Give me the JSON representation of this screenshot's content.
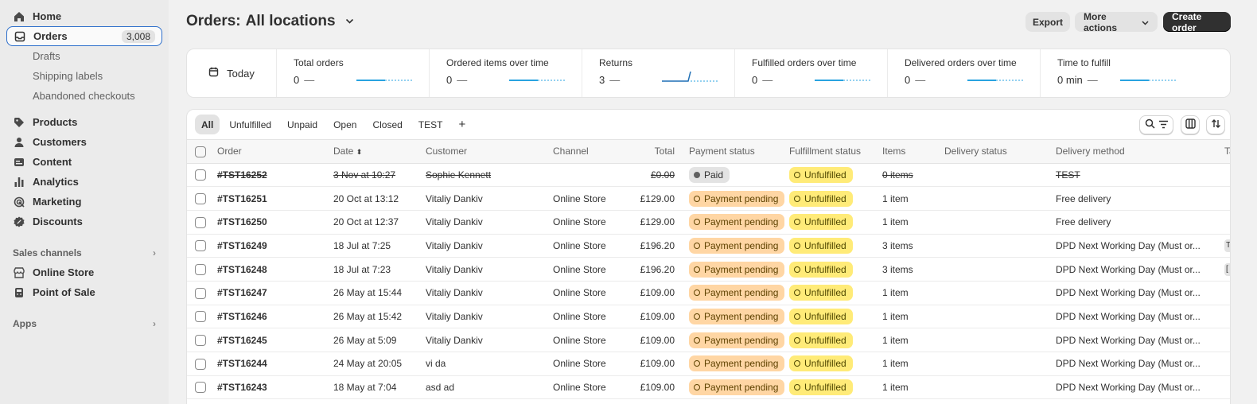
{
  "sidebar": {
    "home": "Home",
    "orders": "Orders",
    "orders_count": "3,008",
    "drafts": "Drafts",
    "shipping_labels": "Shipping labels",
    "abandoned_checkouts": "Abandoned checkouts",
    "products": "Products",
    "customers": "Customers",
    "content": "Content",
    "analytics": "Analytics",
    "marketing": "Marketing",
    "discounts": "Discounts",
    "sales_channels": "Sales channels",
    "online_store": "Online Store",
    "point_of_sale": "Point of Sale",
    "apps": "Apps"
  },
  "header": {
    "title_prefix": "Orders:",
    "title_location": "All locations",
    "export": "Export",
    "more_actions": "More actions",
    "create_order": "Create order"
  },
  "metrics": {
    "today": "Today",
    "items": [
      {
        "label": "Total orders",
        "value": "0",
        "dash": "—"
      },
      {
        "label": "Ordered items over time",
        "value": "0",
        "dash": "—"
      },
      {
        "label": "Returns",
        "value": "3",
        "dash": "—"
      },
      {
        "label": "Fulfilled orders over time",
        "value": "0",
        "dash": "—"
      },
      {
        "label": "Delivered orders over time",
        "value": "0",
        "dash": "—"
      },
      {
        "label": "Time to fulfill",
        "value": "0 min",
        "dash": "—"
      }
    ]
  },
  "tabs": [
    "All",
    "Unfulfilled",
    "Unpaid",
    "Open",
    "Closed",
    "TEST",
    "+"
  ],
  "table": {
    "headers": {
      "order": "Order",
      "date": "Date",
      "customer": "Customer",
      "channel": "Channel",
      "total": "Total",
      "payment": "Payment status",
      "fulfillment": "Fulfillment status",
      "items": "Items",
      "delivery_status": "Delivery status",
      "delivery_method": "Delivery method",
      "tags": "Ta"
    },
    "rows": [
      {
        "order": "#TST16252",
        "date": "3 Nov at 10:27",
        "customer": "Sophie Kennett",
        "channel": "",
        "total": "£0.00",
        "payment": "Paid",
        "fulfillment": "Unfulfilled",
        "items": "0 items",
        "delivery_status": "",
        "delivery_method": "TEST",
        "tag": ""
      },
      {
        "order": "#TST16251",
        "date": "20 Oct at 13:12",
        "customer": "Vitaliy Dankiv",
        "channel": "Online Store",
        "total": "£129.00",
        "payment": "Payment pending",
        "fulfillment": "Unfulfilled",
        "items": "1 item",
        "delivery_status": "",
        "delivery_method": "Free delivery",
        "tag": ""
      },
      {
        "order": "#TST16250",
        "date": "20 Oct at 12:37",
        "customer": "Vitaliy Dankiv",
        "channel": "Online Store",
        "total": "£129.00",
        "payment": "Payment pending",
        "fulfillment": "Unfulfilled",
        "items": "1 item",
        "delivery_status": "",
        "delivery_method": "Free delivery",
        "tag": ""
      },
      {
        "order": "#TST16249",
        "date": "18 Jul at 7:25",
        "customer": "Vitaliy Dankiv",
        "channel": "Online Store",
        "total": "£196.20",
        "payment": "Payment pending",
        "fulfillment": "Unfulfilled",
        "items": "3 items",
        "delivery_status": "",
        "delivery_method": "DPD Next Working Day (Must or...",
        "tag": "T"
      },
      {
        "order": "#TST16248",
        "date": "18 Jul at 7:23",
        "customer": "Vitaliy Dankiv",
        "channel": "Online Store",
        "total": "£196.20",
        "payment": "Payment pending",
        "fulfillment": "Unfulfilled",
        "items": "3 items",
        "delivery_status": "",
        "delivery_method": "DPD Next Working Day (Must or...",
        "tag": "["
      },
      {
        "order": "#TST16247",
        "date": "26 May at 15:44",
        "customer": "Vitaliy Dankiv",
        "channel": "Online Store",
        "total": "£109.00",
        "payment": "Payment pending",
        "fulfillment": "Unfulfilled",
        "items": "1 item",
        "delivery_status": "",
        "delivery_method": "DPD Next Working Day (Must or...",
        "tag": ""
      },
      {
        "order": "#TST16246",
        "date": "26 May at 15:42",
        "customer": "Vitaliy Dankiv",
        "channel": "Online Store",
        "total": "£109.00",
        "payment": "Payment pending",
        "fulfillment": "Unfulfilled",
        "items": "1 item",
        "delivery_status": "",
        "delivery_method": "DPD Next Working Day (Must or...",
        "tag": ""
      },
      {
        "order": "#TST16245",
        "date": "26 May at 5:09",
        "customer": "Vitaliy Dankiv",
        "channel": "Online Store",
        "total": "£109.00",
        "payment": "Payment pending",
        "fulfillment": "Unfulfilled",
        "items": "1 item",
        "delivery_status": "",
        "delivery_method": "DPD Next Working Day (Must or...",
        "tag": ""
      },
      {
        "order": "#TST16244",
        "date": "24 May at 20:05",
        "customer": "vi da",
        "channel": "Online Store",
        "total": "£109.00",
        "payment": "Payment pending",
        "fulfillment": "Unfulfilled",
        "items": "1 item",
        "delivery_status": "",
        "delivery_method": "DPD Next Working Day (Must or...",
        "tag": ""
      },
      {
        "order": "#TST16243",
        "date": "18 May at 7:04",
        "customer": "asd ad",
        "channel": "Online Store",
        "total": "£109.00",
        "payment": "Payment pending",
        "fulfillment": "Unfulfilled",
        "items": "1 item",
        "delivery_status": "",
        "delivery_method": "DPD Next Working Day (Must or...",
        "tag": ""
      }
    ]
  },
  "colors": {
    "accent": "#2c6ecb",
    "payment_pending_bg": "#ffd6a4",
    "unfulfilled_bg": "#ffeb78",
    "sparkline": "#29a3e0"
  }
}
